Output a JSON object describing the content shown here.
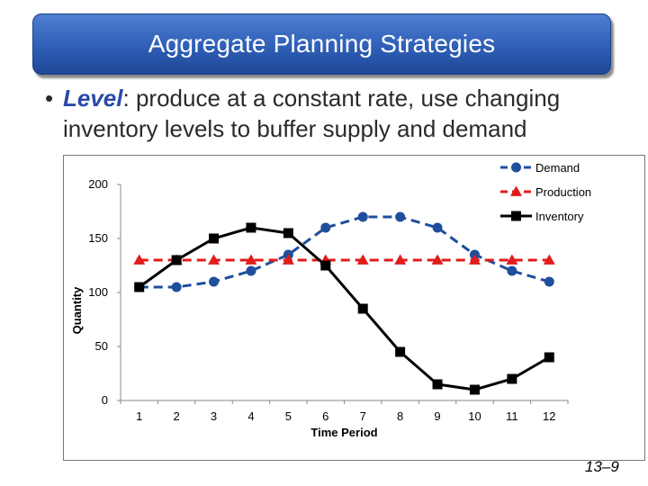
{
  "slide": {
    "title": "Aggregate Planning Strategies",
    "bullet_term": "Level",
    "bullet_text": ": produce at a constant rate, use changing inventory levels to buffer supply and demand",
    "slide_number": "13–9"
  },
  "colors": {
    "banner": "#2f5fb7",
    "demand": "#1f4e9c",
    "production": "#e21b1b",
    "inventory": "#000000"
  },
  "chart_data": {
    "type": "line",
    "title": "",
    "xlabel": "Time Period",
    "ylabel": "Quantity",
    "categories": [
      "1",
      "2",
      "3",
      "4",
      "5",
      "6",
      "7",
      "8",
      "9",
      "10",
      "11",
      "12"
    ],
    "ylim": [
      0,
      200
    ],
    "yticks": [
      0,
      50,
      100,
      150,
      200
    ],
    "grid": false,
    "legend_position": "top-right",
    "series": [
      {
        "name": "Demand",
        "marker": "circle",
        "line": "dashed",
        "color": "#1f4e9c",
        "values": [
          105,
          105,
          110,
          120,
          135,
          160,
          170,
          170,
          160,
          135,
          120,
          110
        ]
      },
      {
        "name": "Production",
        "marker": "triangle",
        "line": "dashed",
        "color": "#e21b1b",
        "values": [
          130,
          130,
          130,
          130,
          130,
          130,
          130,
          130,
          130,
          130,
          130,
          130
        ]
      },
      {
        "name": "Inventory",
        "marker": "square",
        "line": "solid",
        "color": "#000000",
        "values": [
          105,
          130,
          150,
          160,
          155,
          125,
          85,
          45,
          15,
          10,
          20,
          40
        ]
      }
    ]
  }
}
